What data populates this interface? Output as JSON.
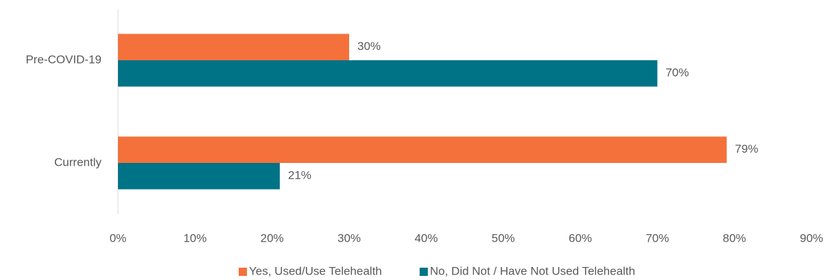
{
  "chart_data": {
    "type": "bar",
    "orientation": "horizontal",
    "categories": [
      "Pre-COVID-19",
      "Currently"
    ],
    "series": [
      {
        "name": "Yes, Used/Use Telehealth",
        "color": "#f4713b",
        "values": [
          30,
          79
        ],
        "value_labels": [
          "30%",
          "79%"
        ]
      },
      {
        "name": "No, Did Not / Have Not Used Telehealth",
        "color": "#007387",
        "values": [
          70,
          21
        ],
        "value_labels": [
          "70%",
          "21%"
        ]
      }
    ],
    "xlim": [
      0,
      90
    ],
    "xticks": [
      {
        "value": 0,
        "label": "0%"
      },
      {
        "value": 10,
        "label": "10%"
      },
      {
        "value": 20,
        "label": "20%"
      },
      {
        "value": 30,
        "label": "30%"
      },
      {
        "value": 40,
        "label": "40%"
      },
      {
        "value": 50,
        "label": "50%"
      },
      {
        "value": 60,
        "label": "60%"
      },
      {
        "value": 70,
        "label": "70%"
      },
      {
        "value": 80,
        "label": "80%"
      },
      {
        "value": 90,
        "label": "90%"
      }
    ],
    "grid": false,
    "legend": "bottom"
  }
}
